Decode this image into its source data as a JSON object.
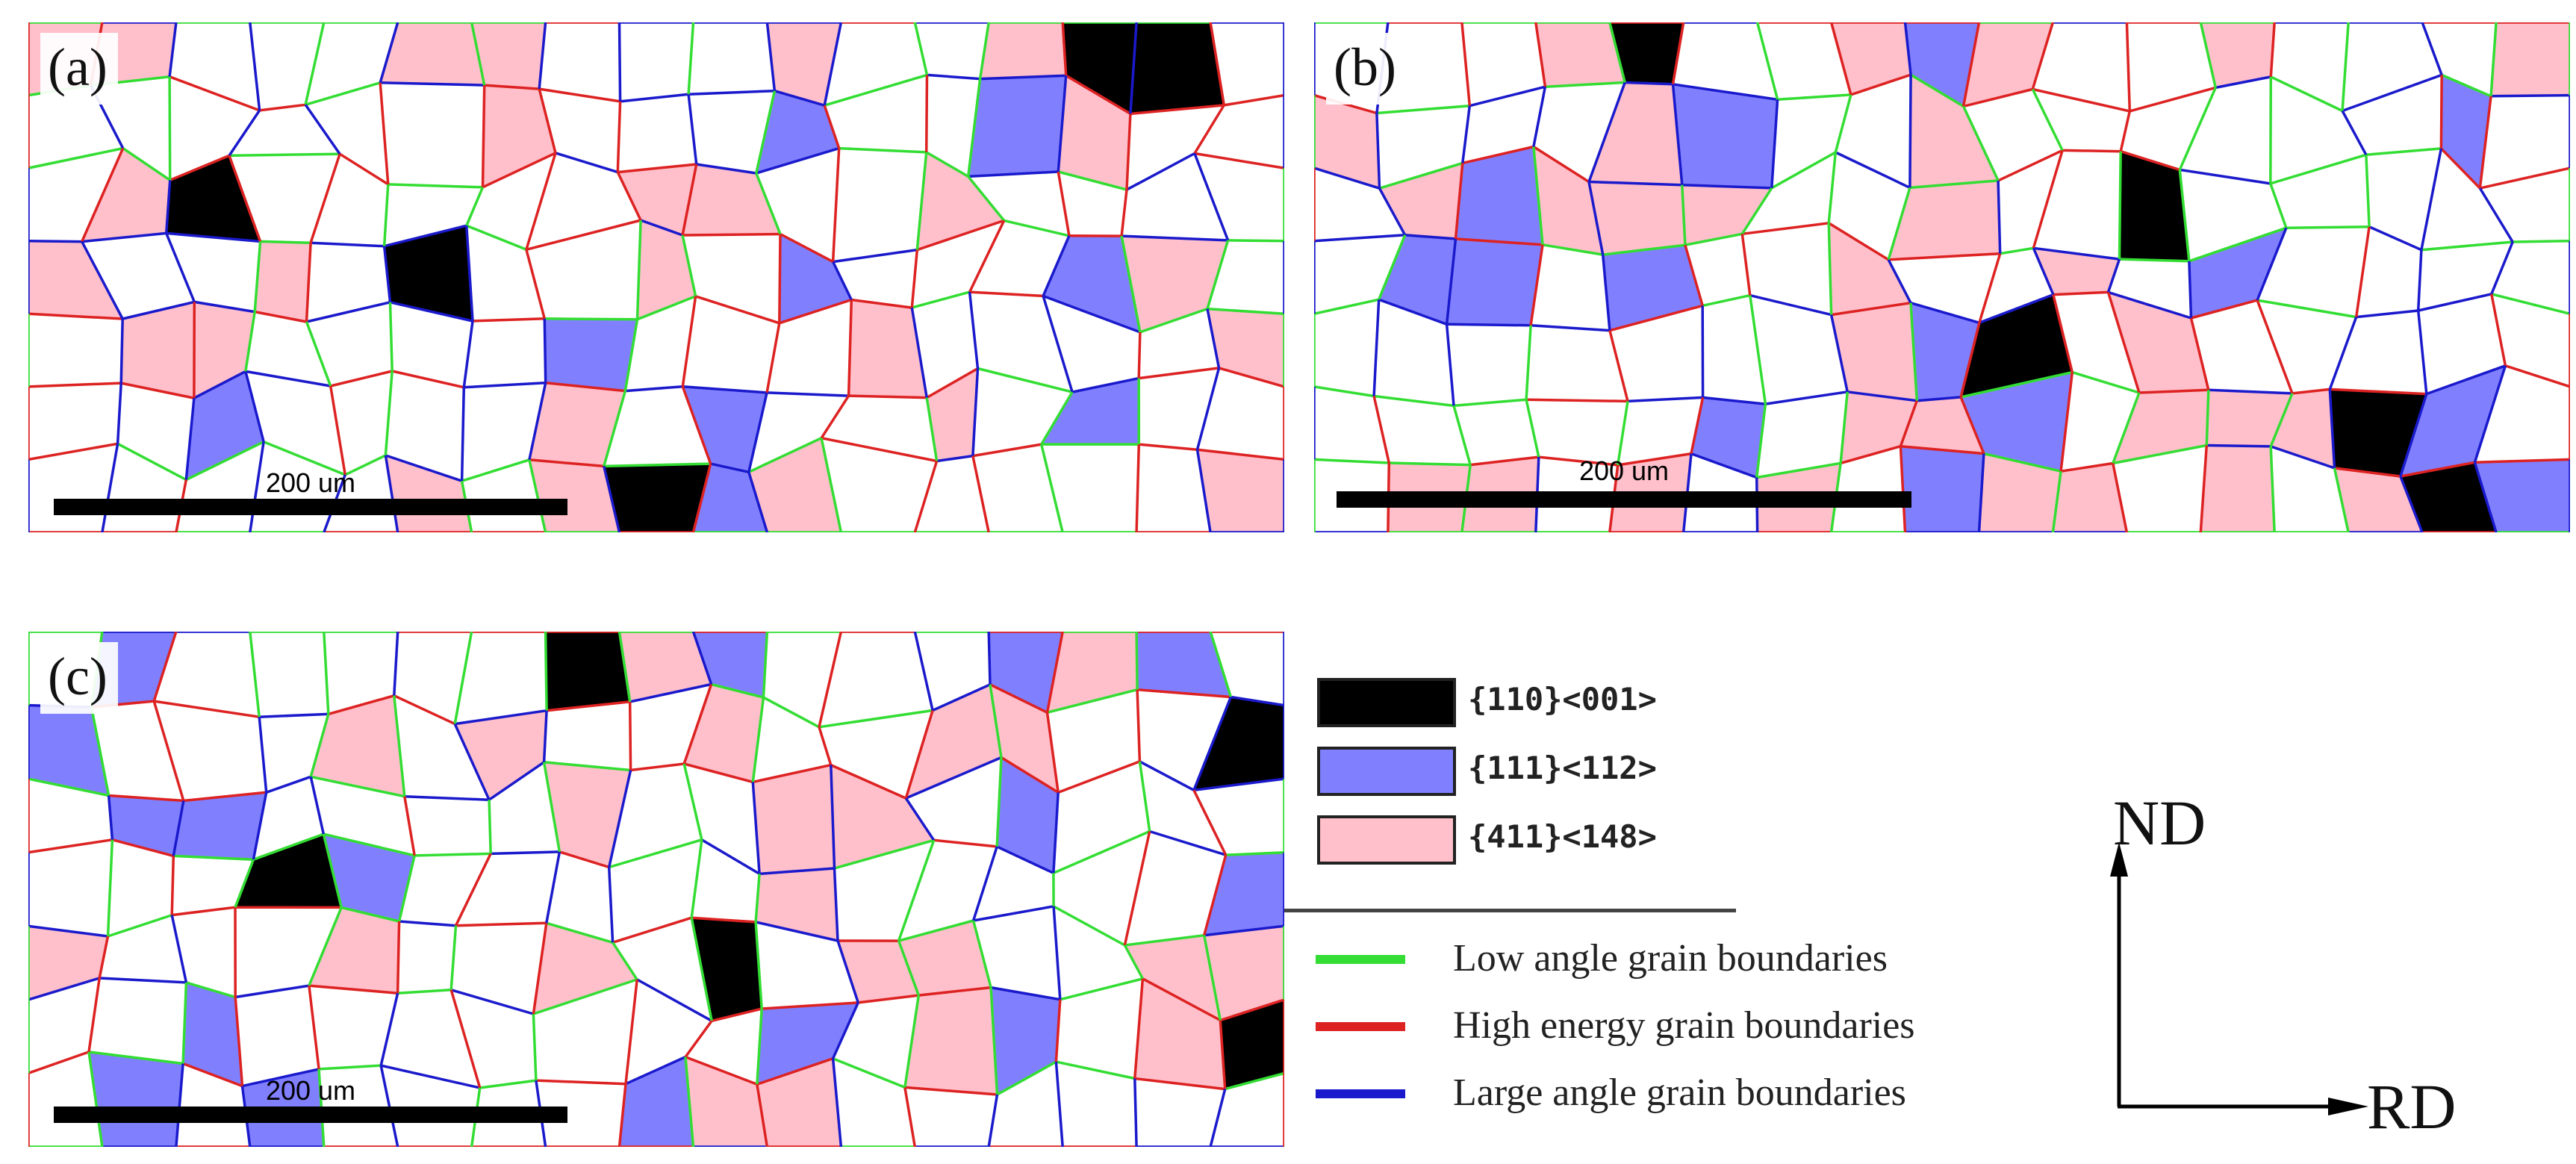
{
  "panels": [
    {
      "id": "a",
      "label": "(a)",
      "scalebar_label": "200 um"
    },
    {
      "id": "b",
      "label": "(b)",
      "scalebar_label": "200 um"
    },
    {
      "id": "c",
      "label": "(c)",
      "scalebar_label": "200 um"
    }
  ],
  "legend": {
    "textures": [
      {
        "label": "{110}<001>",
        "color": "#000000"
      },
      {
        "label": "{111}<112>",
        "color": "#8080ff"
      },
      {
        "label": "{411}<148>",
        "color": "#ffc0cb"
      }
    ],
    "boundaries": [
      {
        "label": "Low angle grain boundaries",
        "color": "#33dd33"
      },
      {
        "label": "High energy grain boundaries",
        "color": "#dd2222"
      },
      {
        "label": "Large angle grain boundaries",
        "color": "#1a1acc"
      }
    ]
  },
  "axes": {
    "vertical": "ND",
    "horizontal": "RD"
  }
}
